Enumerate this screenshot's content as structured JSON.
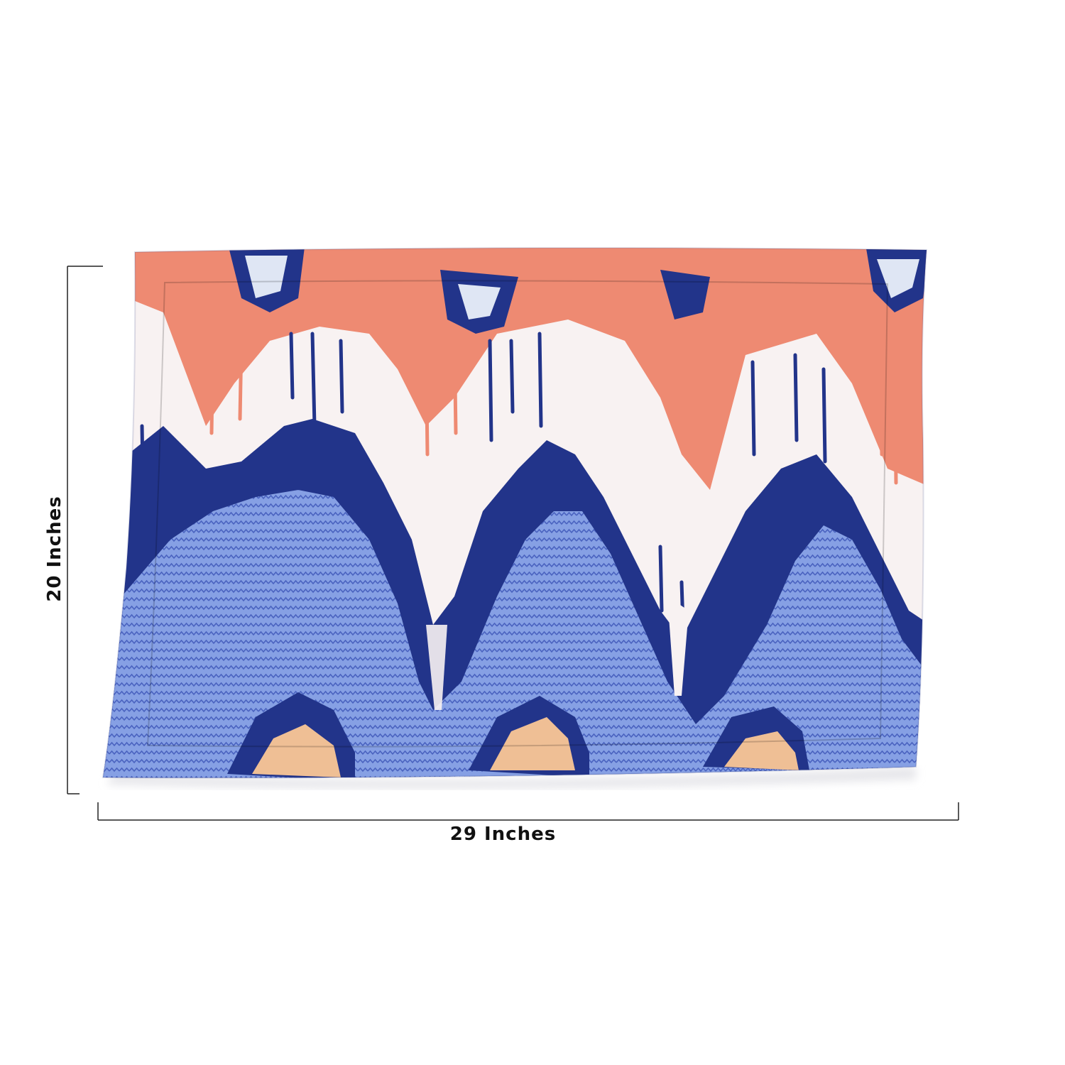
{
  "dimensions": {
    "width_label": "29 Inches",
    "height_label": "20 Inches"
  },
  "pillow": {
    "description_icon": "pillow-product-photo",
    "colors": {
      "coral": "#ee8a72",
      "white": "#f8f2f2",
      "navy": "#22348a",
      "periwinkle": "#7d97de",
      "peach": "#efbf95"
    }
  }
}
